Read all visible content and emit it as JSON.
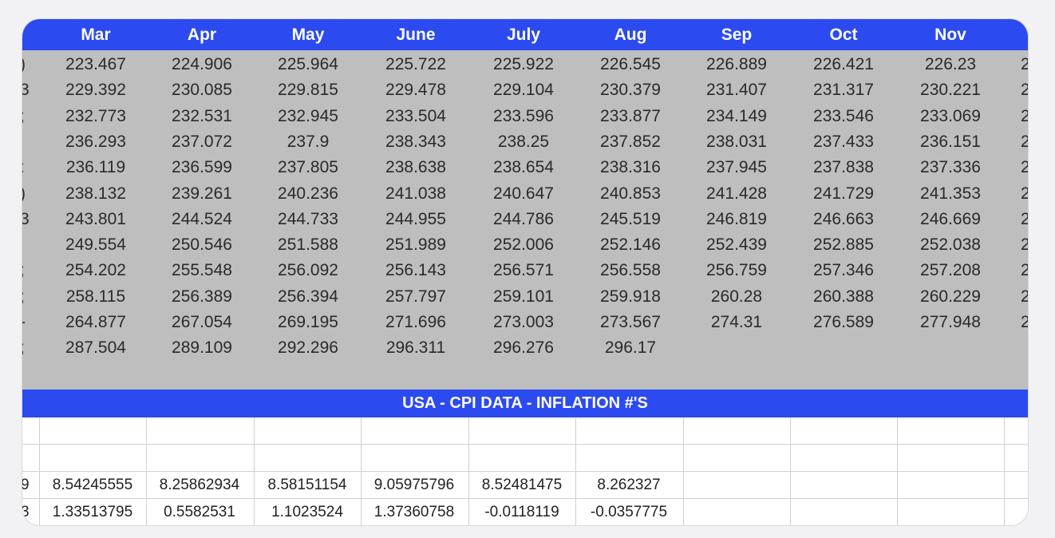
{
  "header": {
    "months": [
      "Mar",
      "Apr",
      "May",
      "June",
      "July",
      "Aug",
      "Sep",
      "Oct",
      "Nov"
    ]
  },
  "cpi_rows": [
    {
      "left": ")",
      "values": [
        "223.467",
        "224.906",
        "225.964",
        "225.722",
        "225.922",
        "226.545",
        "226.889",
        "226.421",
        "226.23"
      ],
      "right": "2"
    },
    {
      "left": "3",
      "values": [
        "229.392",
        "230.085",
        "229.815",
        "229.478",
        "229.104",
        "230.379",
        "231.407",
        "231.317",
        "230.221"
      ],
      "right": "2"
    },
    {
      "left": ";",
      "values": [
        "232.773",
        "232.531",
        "232.945",
        "233.504",
        "233.596",
        "233.877",
        "234.149",
        "233.546",
        "233.069"
      ],
      "right": "2"
    },
    {
      "left": "",
      "values": [
        "236.293",
        "237.072",
        "237.9",
        "238.343",
        "238.25",
        "237.852",
        "238.031",
        "237.433",
        "236.151"
      ],
      "right": "2"
    },
    {
      "left": ":",
      "values": [
        "236.119",
        "236.599",
        "237.805",
        "238.638",
        "238.654",
        "238.316",
        "237.945",
        "237.838",
        "237.336"
      ],
      "right": "2"
    },
    {
      "left": ")",
      "values": [
        "238.132",
        "239.261",
        "240.236",
        "241.038",
        "240.647",
        "240.853",
        "241.428",
        "241.729",
        "241.353"
      ],
      "right": "2"
    },
    {
      "left": "3",
      "values": [
        "243.801",
        "244.524",
        "244.733",
        "244.955",
        "244.786",
        "245.519",
        "246.819",
        "246.663",
        "246.669"
      ],
      "right": "2"
    },
    {
      "left": "",
      "values": [
        "249.554",
        "250.546",
        "251.588",
        "251.989",
        "252.006",
        "252.146",
        "252.439",
        "252.885",
        "252.038"
      ],
      "right": "2"
    },
    {
      "left": ";",
      "values": [
        "254.202",
        "255.548",
        "256.092",
        "256.143",
        "256.571",
        "256.558",
        "256.759",
        "257.346",
        "257.208"
      ],
      "right": "2"
    },
    {
      "left": ";",
      "values": [
        "258.115",
        "256.389",
        "256.394",
        "257.797",
        "259.101",
        "259.918",
        "260.28",
        "260.388",
        "260.229"
      ],
      "right": "2"
    },
    {
      "left": "-",
      "values": [
        "264.877",
        "267.054",
        "269.195",
        "271.696",
        "273.003",
        "273.567",
        "274.31",
        "276.589",
        "277.948"
      ],
      "right": "2"
    },
    {
      "left": ";",
      "values": [
        "287.504",
        "289.109",
        "292.296",
        "296.311",
        "296.276",
        "296.17",
        "",
        "",
        ""
      ],
      "right": ""
    }
  ],
  "band_title": "USA - CPI DATA - INFLATION #'S",
  "sheet_rows": [
    {
      "left": "",
      "values": [
        "",
        "",
        "",
        "",
        "",
        "",
        "",
        "",
        ""
      ]
    },
    {
      "left": "",
      "values": [
        "",
        "",
        "",
        "",
        "",
        "",
        "",
        "",
        ""
      ]
    },
    {
      "left": "9",
      "values": [
        "8.54245555",
        "8.25862934",
        "8.58151154",
        "9.05975796",
        "8.52481475",
        "8.262327",
        "",
        "",
        ""
      ]
    },
    {
      "left": "3",
      "values": [
        "1.33513795",
        "0.5582531",
        "1.1023524",
        "1.37360758",
        "-0.0118119",
        "-0.0357775",
        "",
        "",
        ""
      ]
    }
  ]
}
